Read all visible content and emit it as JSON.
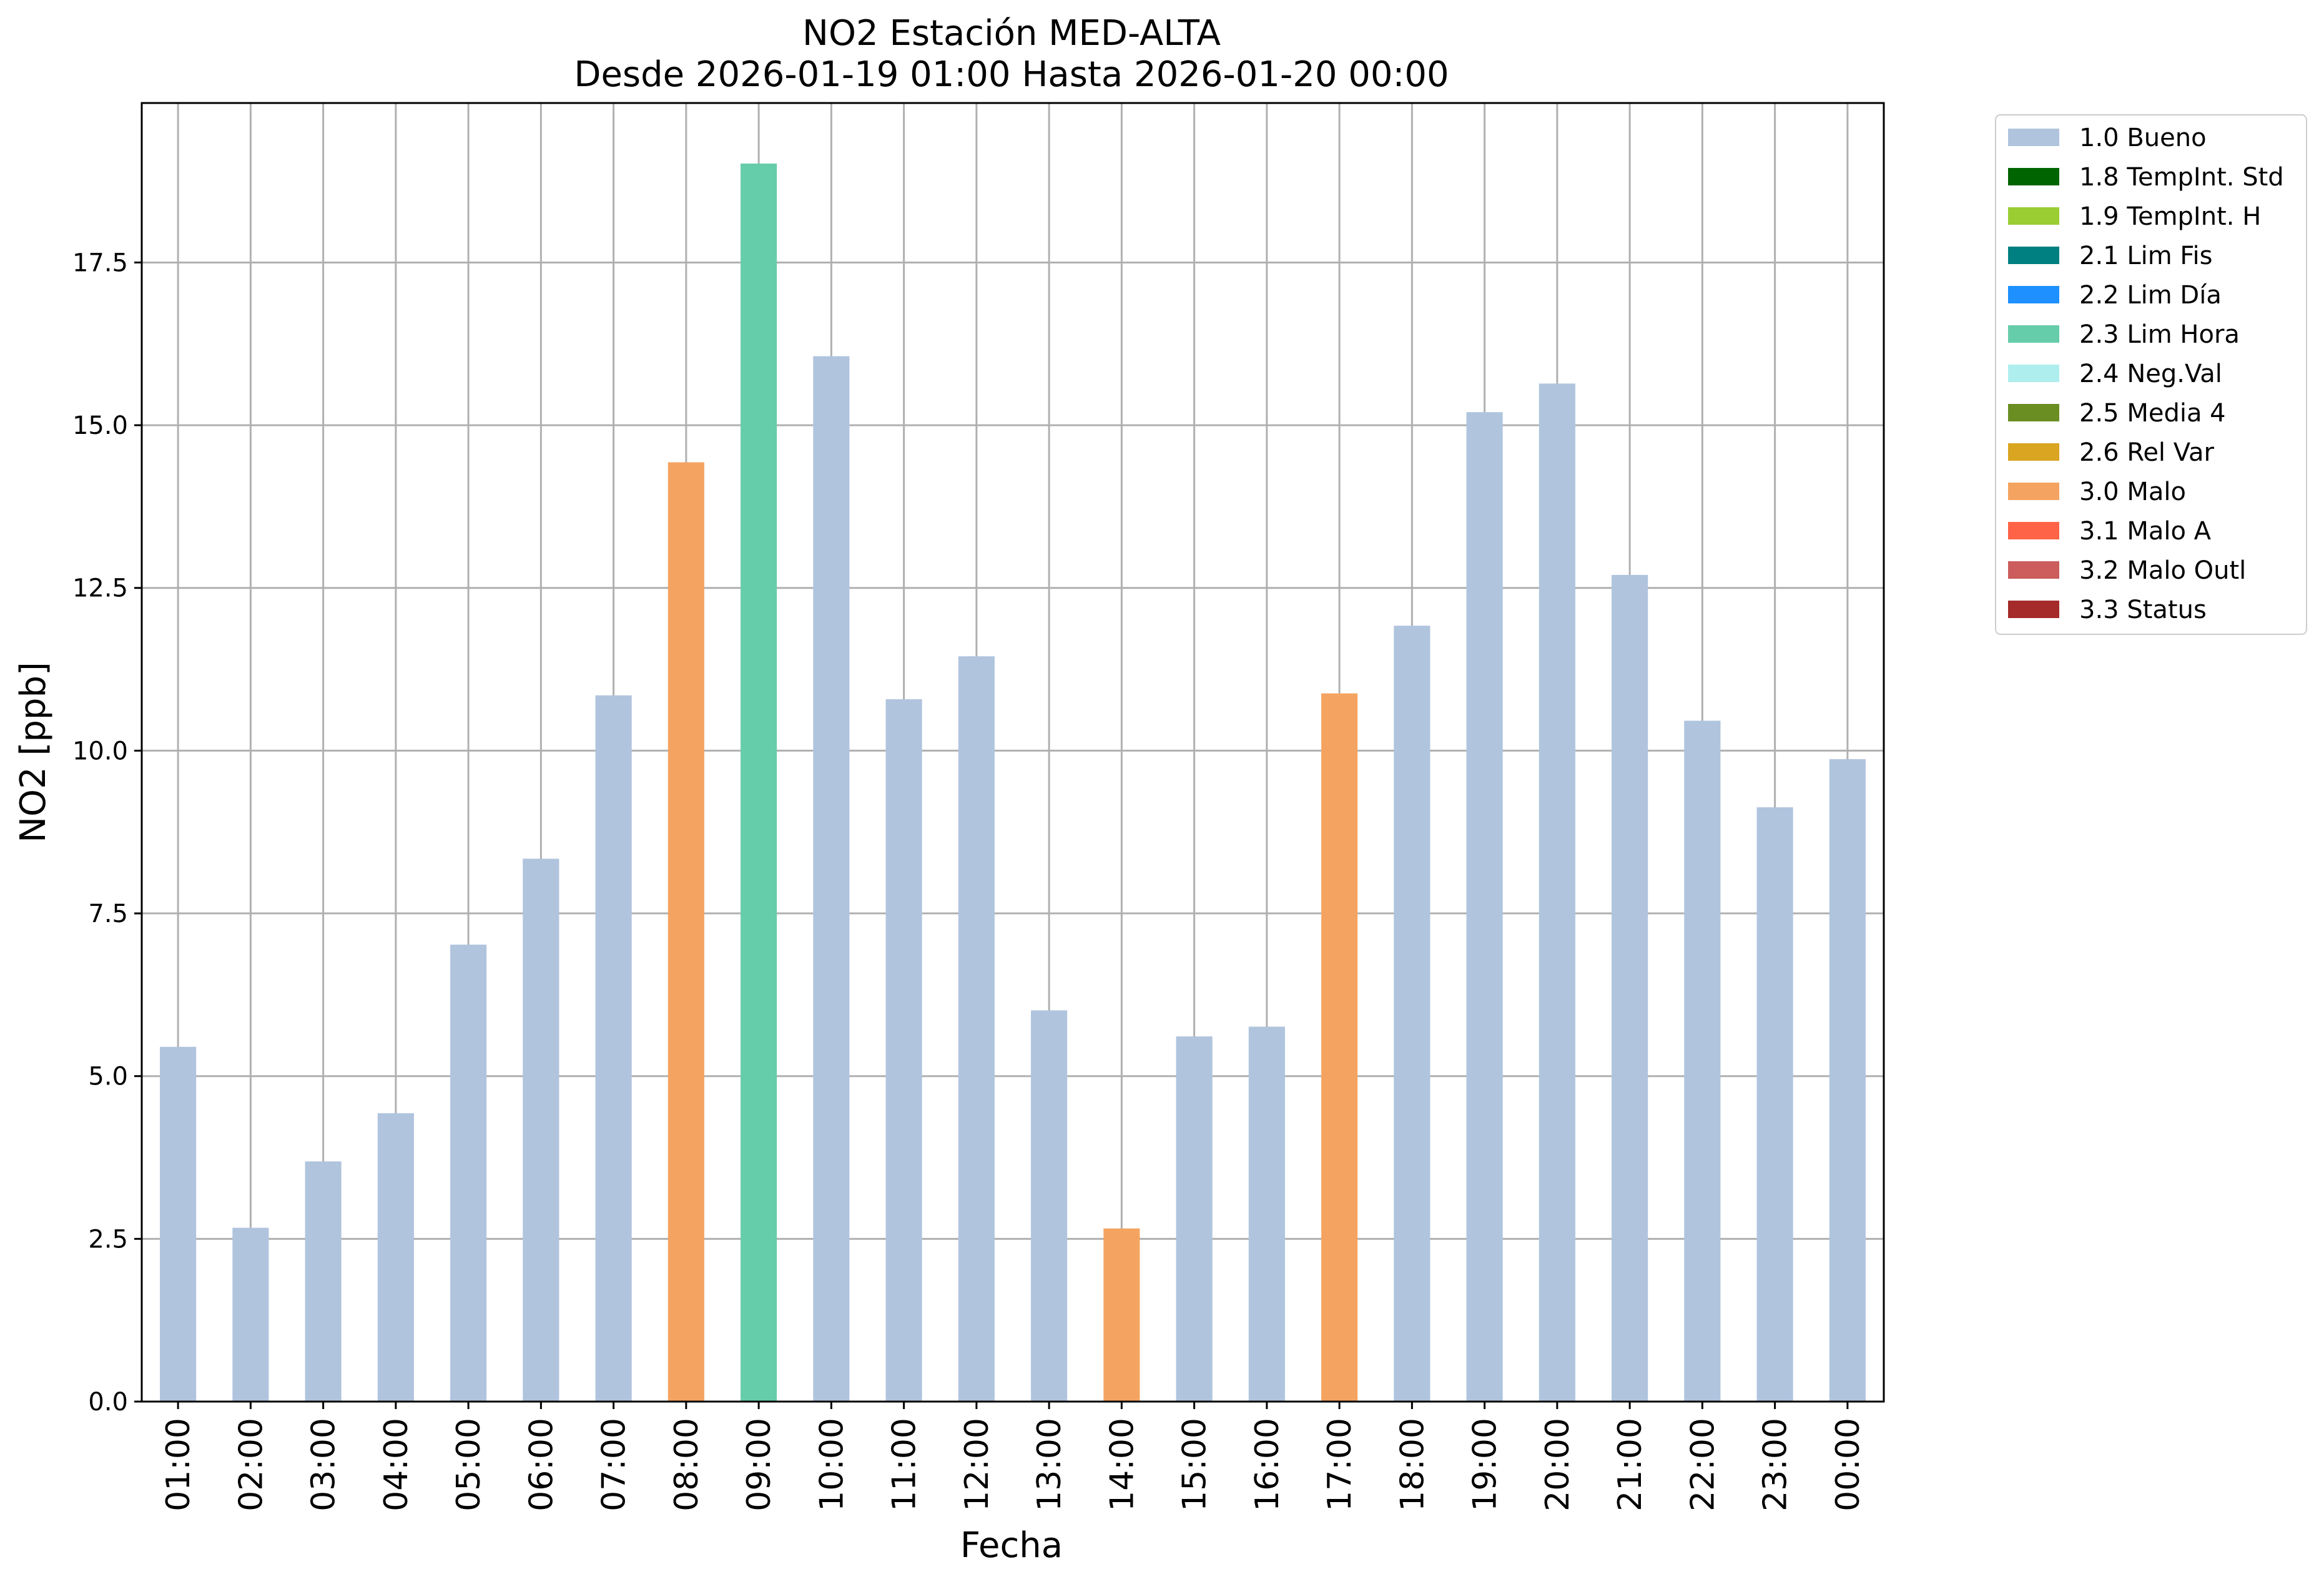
{
  "chart_data": {
    "type": "bar",
    "title": "NO2 Estación MED-ALTA",
    "subtitle": "Desde 2026-01-19 01:00 Hasta 2026-01-20 00:00",
    "xlabel": "Fecha",
    "ylabel": "NO2 [ppb]",
    "ylim": [
      0,
      19.95
    ],
    "yticks": [
      "0.0",
      "2.5",
      "5.0",
      "7.5",
      "10.0",
      "12.5",
      "15.0",
      "17.5"
    ],
    "grid": true,
    "legend_position": "outside right, top",
    "categories": [
      "01:00",
      "02:00",
      "03:00",
      "04:00",
      "05:00",
      "06:00",
      "07:00",
      "08:00",
      "09:00",
      "10:00",
      "11:00",
      "12:00",
      "13:00",
      "14:00",
      "15:00",
      "16:00",
      "17:00",
      "18:00",
      "19:00",
      "20:00",
      "21:00",
      "22:00",
      "23:00",
      "00:00"
    ],
    "values": [
      5.45,
      2.67,
      3.69,
      4.43,
      7.02,
      8.34,
      10.85,
      14.43,
      19.02,
      16.06,
      10.79,
      11.45,
      6.01,
      2.66,
      5.61,
      5.76,
      10.88,
      11.92,
      15.2,
      15.64,
      12.7,
      10.46,
      9.13,
      9.87
    ],
    "flags": [
      "1.0 Bueno",
      "1.0 Bueno",
      "1.0 Bueno",
      "1.0 Bueno",
      "1.0 Bueno",
      "1.0 Bueno",
      "1.0 Bueno",
      "3.0 Malo",
      "2.3 Lim Hora",
      "1.0 Bueno",
      "1.0 Bueno",
      "1.0 Bueno",
      "1.0 Bueno",
      "3.0 Malo",
      "1.0 Bueno",
      "1.0 Bueno",
      "3.0 Malo",
      "1.0 Bueno",
      "1.0 Bueno",
      "1.0 Bueno",
      "1.0 Bueno",
      "1.0 Bueno",
      "1.0 Bueno",
      "1.0 Bueno"
    ],
    "legend": [
      {
        "label": "1.0 Bueno",
        "color": "#b0c4de"
      },
      {
        "label": "1.8 TempInt. Std",
        "color": "#006400"
      },
      {
        "label": "1.9 TempInt. H",
        "color": "#9acd32"
      },
      {
        "label": "2.1 Lim Fis",
        "color": "#008080"
      },
      {
        "label": "2.2 Lim Día",
        "color": "#1e90ff"
      },
      {
        "label": "2.3 Lim Hora",
        "color": "#66cdaa"
      },
      {
        "label": "2.4 Neg.Val",
        "color": "#afeeee"
      },
      {
        "label": "2.5 Media 4",
        "color": "#6b8e23"
      },
      {
        "label": "2.6 Rel Var",
        "color": "#daa520"
      },
      {
        "label": "3.0 Malo",
        "color": "#f4a460"
      },
      {
        "label": "3.1 Malo A",
        "color": "#ff6347"
      },
      {
        "label": "3.2 Malo Outl",
        "color": "#cd5c5c"
      },
      {
        "label": "3.3 Status",
        "color": "#a52a2a"
      }
    ]
  }
}
